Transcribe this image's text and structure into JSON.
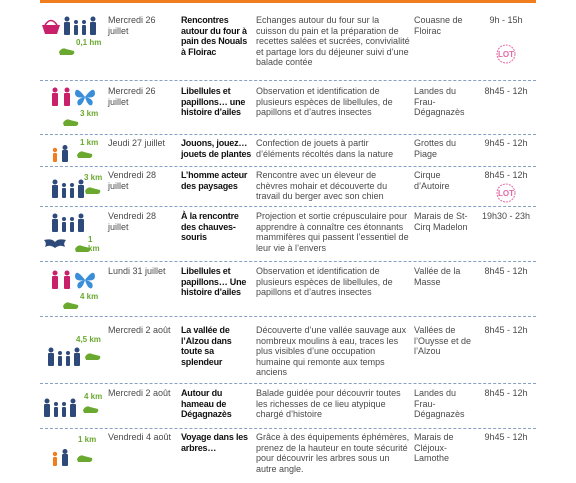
{
  "colors": {
    "accent": "#f07d1e",
    "family": "#2e4a7a",
    "pink": "#c8206a",
    "blue": "#3a8ed8",
    "green": "#6aa830"
  },
  "rows": [
    {
      "date": "Mercredi 26 juillet",
      "title": "Rencontres autour du four à pain des Nouals à Floirac",
      "desc": "Echanges autour du four sur la cuisson du pain et la préparation de recettes salées et sucrées, convivialité et partage lors du déjeuner suivi d’une balade contée",
      "place": "Couasne de Floirac",
      "time": "9h - 15h",
      "distance": "0,1 hm",
      "icons": [
        "basket-icon",
        "family-icon",
        "shoe-icon"
      ],
      "lot_label": "LOT"
    },
    {
      "date": "Mercredi 26 juillet",
      "title": "Libellules et papillons… une histoire d’ailes",
      "desc": "Observation et identification de plusieurs espèces de libellules, de papillons et d’autres insectes",
      "place": "Landes du Frau-Dégagnazès",
      "time": "8h45 - 12h",
      "distance": "3 km",
      "icons": [
        "couple-icon",
        "butterfly-icon",
        "shoe-icon"
      ]
    },
    {
      "date": "Jeudi 27 juillet",
      "title": "Jouons, jouez… jouets de plantes",
      "desc": "Confection de jouets à partir d’éléments récoltés dans la nature",
      "place": "Grottes du Piage",
      "time": "9h45 - 12h",
      "distance": "1 km",
      "icons": [
        "child-icon",
        "adult-icon",
        "shoe-icon"
      ]
    },
    {
      "date": "Vendredi 28 juillet",
      "title": "L’homme acteur des paysages",
      "desc": "Rencontre avec un éleveur de chèvres mohair et découverte du travail du berger avec son chien",
      "place": "Cirque d’Autoire",
      "time": "8h45 - 12h",
      "distance": "3 km",
      "icons": [
        "family-icon",
        "shoe-icon"
      ],
      "lot_label": "LOT"
    },
    {
      "date": "Vendredi 28 juillet",
      "title": "À la rencontre des chauves-souris",
      "desc": "Projection et sortie crépusculaire pour apprendre à connaître ces étonnants mammifères qui passent l’essentiel de leur vie à l’envers",
      "place": "Marais de St-Cirq Madelon",
      "time": "19h30 - 23h",
      "distance": "1 km",
      "icons": [
        "family-icon",
        "bat-icon",
        "shoe-icon"
      ]
    },
    {
      "date": "Lundi 31 juillet",
      "title": "Libellules et papillons… Une histoire d’ailes",
      "desc": "Observation et identification de plusieurs espèces de libellules, de papillons et d’autres insectes",
      "place": "Vallée de la Masse",
      "time": "8h45 - 12h",
      "distance": "4 km",
      "icons": [
        "couple-icon",
        "butterfly-icon",
        "shoe-icon"
      ]
    },
    {
      "date": "Mercredi 2 août",
      "title": "La vallée de l’Alzou dans toute sa splendeur",
      "desc": "Découverte d’une vallée sauvage aux nombreux moulins à eau, traces les plus visibles d’une occupation humaine qui remonte aux temps anciens",
      "place": "Vallées de l’Ouysse et de l’Alzou",
      "time": "8h45 - 12h",
      "distance": "4,5 km",
      "icons": [
        "family-icon",
        "shoe-icon"
      ]
    },
    {
      "date": "Mercredi 2 août",
      "title": "Autour du hameau de Dégagnazès",
      "desc": "Balade guidée pour découvrir toutes les richesses de ce lieu atypique chargé d’histoire",
      "place": "Landes du Frau-Dégagnazès",
      "time": "8h45 - 12h",
      "distance": "4 km",
      "icons": [
        "family-icon",
        "shoe-icon"
      ]
    },
    {
      "date": "Vendredi 4 août",
      "title": "Voyage dans les arbres…",
      "desc": "Grâce à des équipements éphémères, prenez de la hauteur en toute sécurité pour découvrir les arbres sous un autre angle.",
      "place": "Marais de Cléjoux-Lamothe",
      "time": "9h45 - 12h",
      "distance": "1 km",
      "icons": [
        "child-icon",
        "adult-icon",
        "shoe-icon"
      ]
    }
  ]
}
